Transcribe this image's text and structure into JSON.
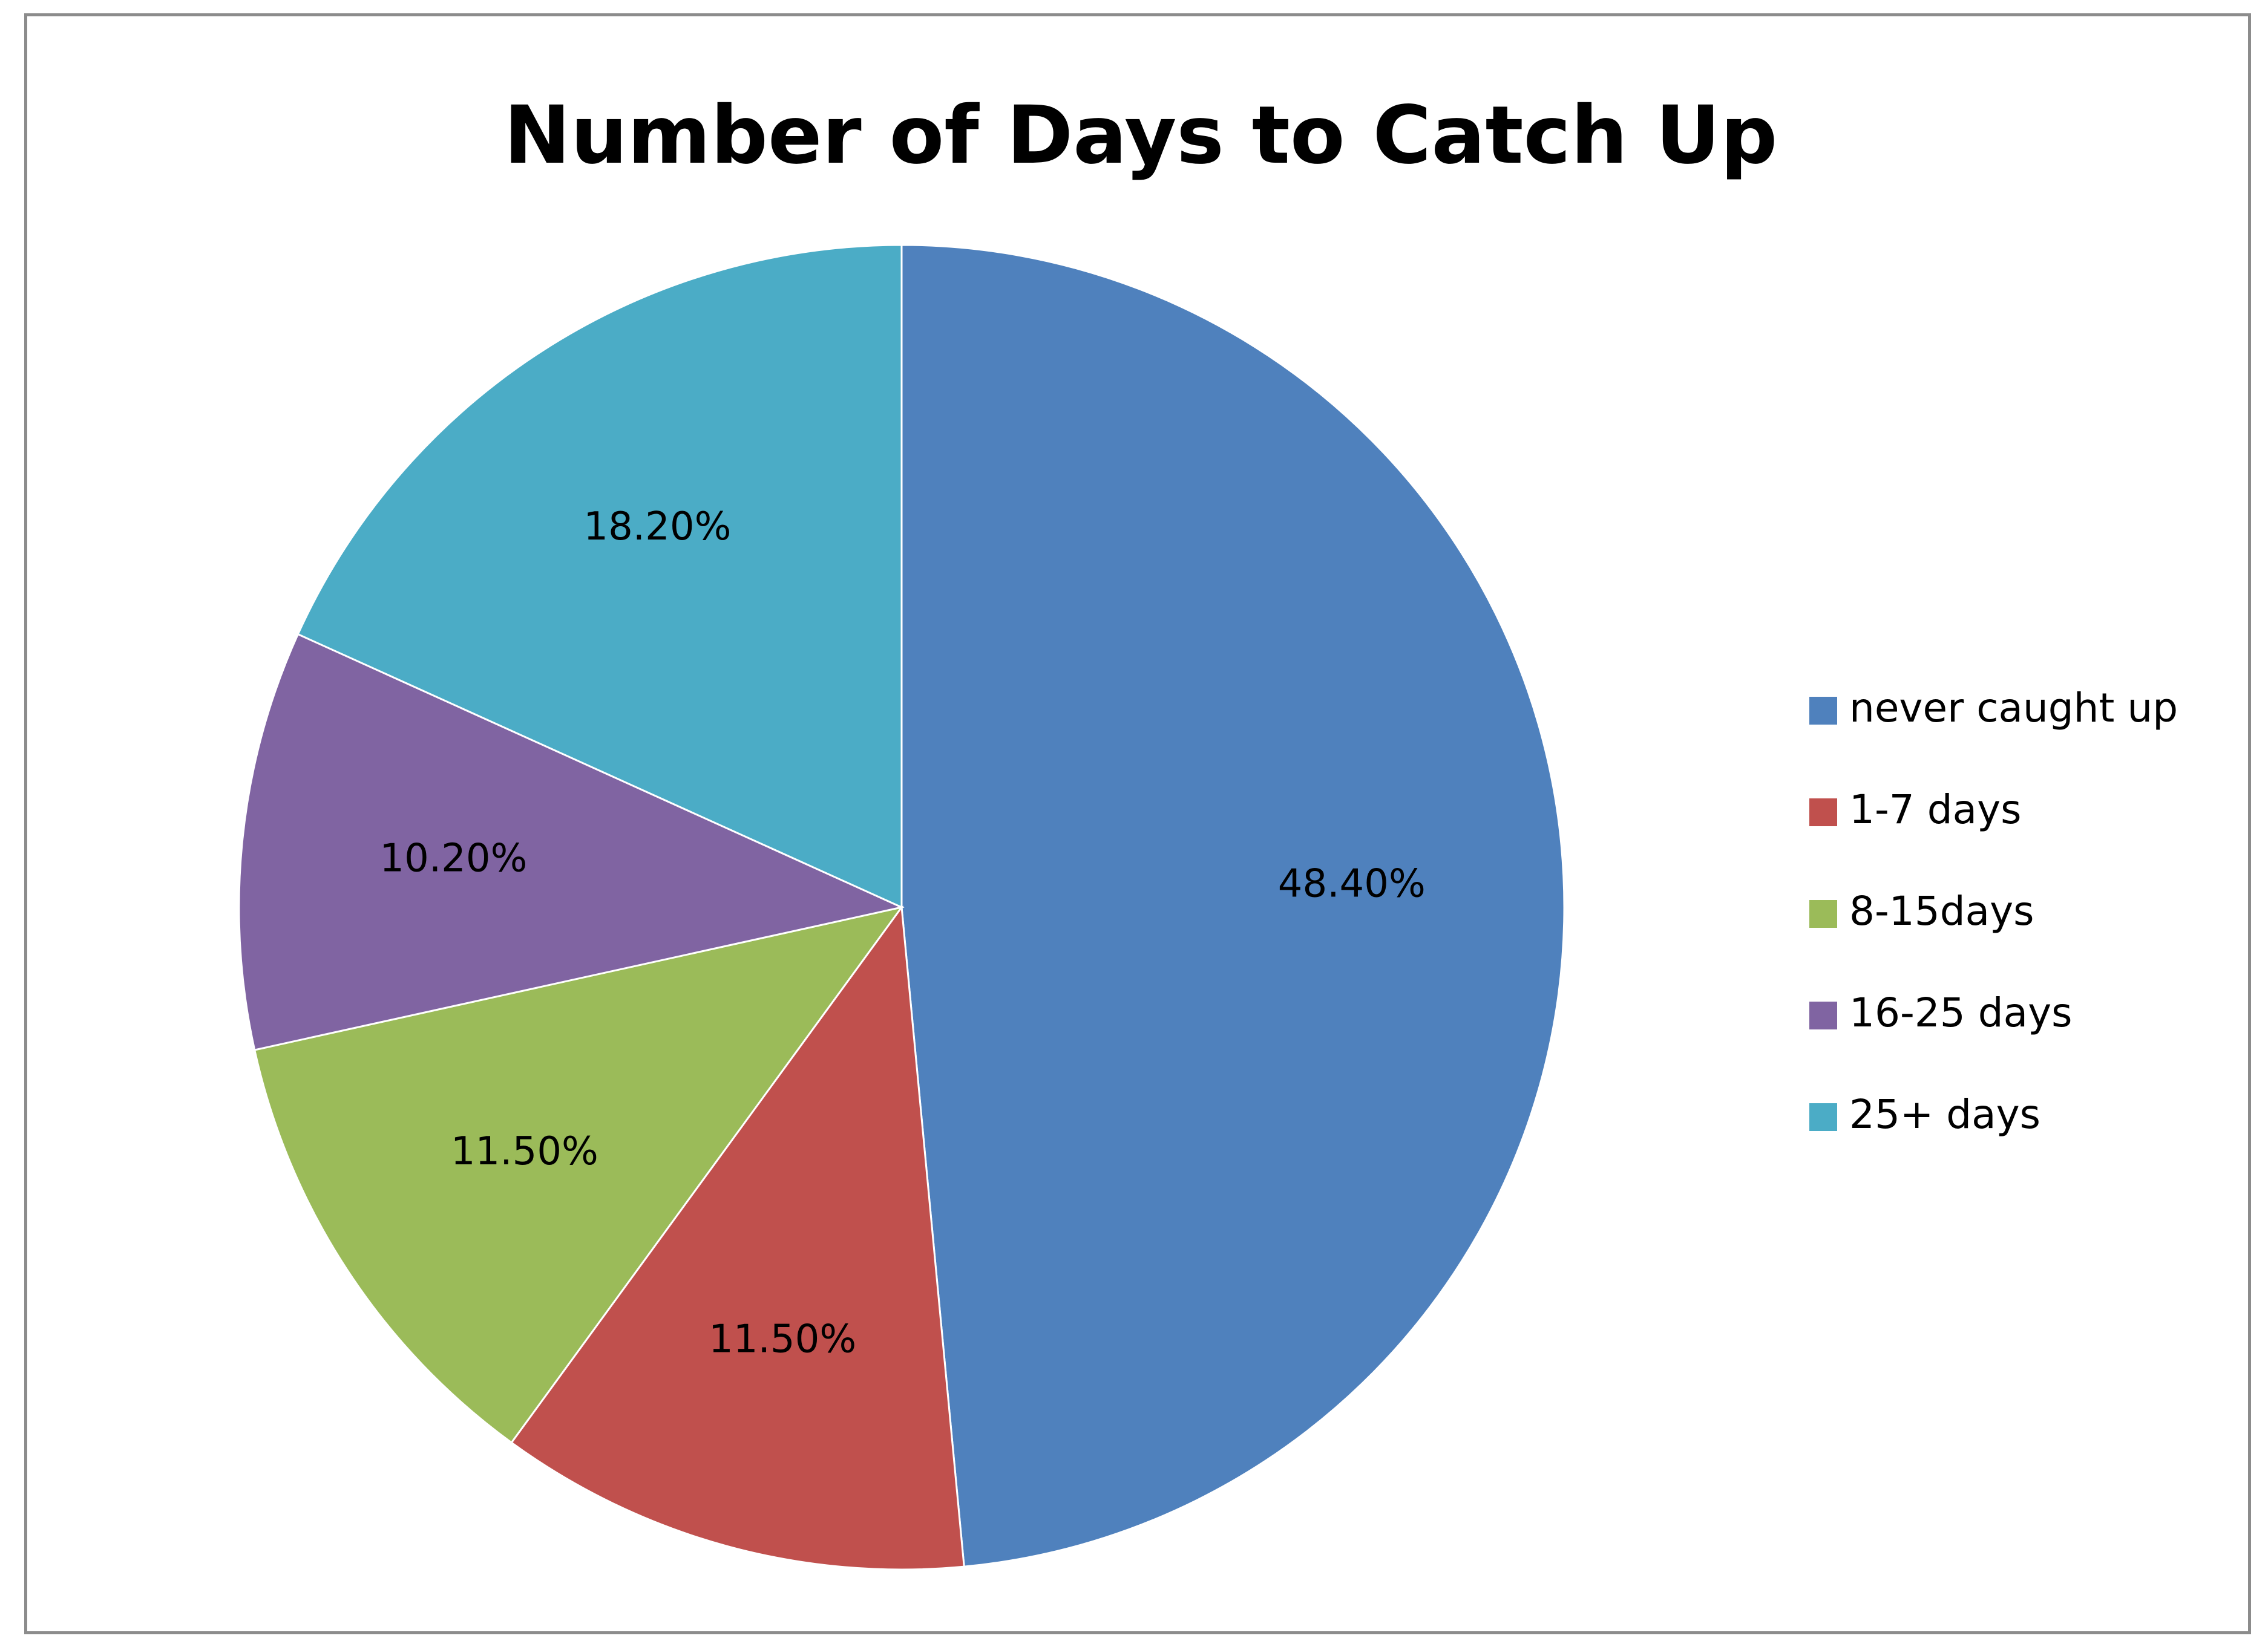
{
  "chart_data": {
    "type": "pie",
    "title": "Number of Days to Catch Up",
    "categories": [
      "never caught up",
      "1-7 days",
      "8-15days",
      "16-25 days",
      "25+ days"
    ],
    "values": [
      48.4,
      11.5,
      11.5,
      10.2,
      18.2
    ],
    "labels": [
      "48.40%",
      "11.50%",
      "11.50%",
      "10.20%",
      "18.20%"
    ],
    "colors": [
      "#4f81bd",
      "#c0504d",
      "#9bbb59",
      "#8064a2",
      "#4bacc6"
    ],
    "start_angle": "12 o'clock",
    "direction": "clockwise",
    "legend_position": "right"
  }
}
